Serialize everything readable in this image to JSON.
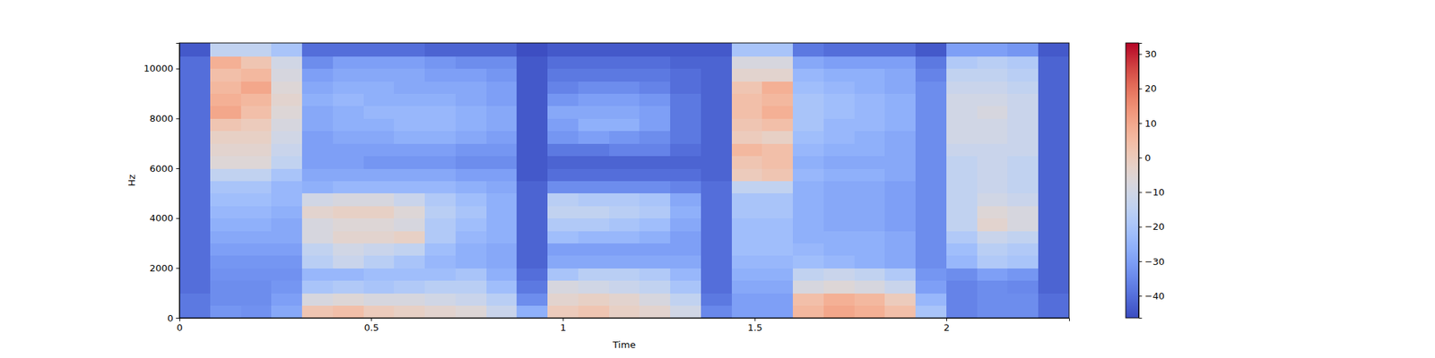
{
  "chart_data": {
    "type": "heatmap",
    "xlabel": "Time",
    "ylabel": "Hz",
    "xlim": [
      0,
      2.32
    ],
    "xticks": [
      0,
      0.5,
      1,
      1.5,
      2
    ],
    "ylim": [
      0,
      11025
    ],
    "yticks": [
      0,
      2000,
      4000,
      6000,
      8000,
      10000
    ],
    "x_edges": [
      0,
      0.08,
      0.16,
      0.24,
      0.32,
      0.4,
      0.48,
      0.56,
      0.64,
      0.72,
      0.8,
      0.88,
      0.96,
      1.04,
      1.12,
      1.2,
      1.28,
      1.36,
      1.44,
      1.52,
      1.6,
      1.68,
      1.76,
      1.84,
      1.92,
      2.0,
      2.08,
      2.16,
      2.24,
      2.32
    ],
    "y_edges": [
      0,
      500,
      1000,
      1500,
      2000,
      2500,
      3000,
      3500,
      4000,
      4500,
      5000,
      5500,
      6000,
      6500,
      7000,
      7500,
      8000,
      8500,
      9000,
      9500,
      10000,
      10500,
      11025
    ],
    "values": [
      [
        -38,
        -32,
        -33,
        -28,
        2,
        4,
        0,
        -2,
        -4,
        -6,
        -12,
        -26,
        0,
        2,
        -2,
        -4,
        -10,
        -35,
        -30,
        -30,
        6,
        10,
        8,
        4,
        -20,
        -36,
        -34,
        -34,
        -40
      ],
      [
        -38,
        -34,
        -34,
        -30,
        -8,
        -6,
        -8,
        -8,
        -10,
        -12,
        -16,
        -34,
        -4,
        -2,
        -4,
        -8,
        -14,
        -38,
        -30,
        -30,
        4,
        8,
        6,
        0,
        -24,
        -36,
        -34,
        -34,
        -40
      ],
      [
        -40,
        -34,
        -34,
        -32,
        -20,
        -18,
        -20,
        -18,
        -16,
        -16,
        -22,
        -38,
        -8,
        -10,
        -12,
        -14,
        -20,
        -40,
        -28,
        -28,
        -8,
        -6,
        -8,
        -12,
        -30,
        -36,
        -34,
        -35,
        -42
      ],
      [
        -40,
        -33,
        -33,
        -33,
        -24,
        -24,
        -22,
        -22,
        -22,
        -20,
        -26,
        -40,
        -20,
        -16,
        -16,
        -18,
        -24,
        -40,
        -26,
        -26,
        -14,
        -12,
        -14,
        -18,
        -32,
        -34,
        -30,
        -32,
        -42
      ],
      [
        -40,
        -32,
        -32,
        -32,
        -16,
        -12,
        -16,
        -20,
        -24,
        -26,
        -28,
        -42,
        -28,
        -28,
        -28,
        -28,
        -28,
        -40,
        -24,
        -24,
        -22,
        -24,
        -26,
        -28,
        -34,
        -24,
        -18,
        -20,
        -42
      ],
      [
        -40,
        -30,
        -30,
        -30,
        -14,
        -10,
        -12,
        -14,
        -22,
        -26,
        -28,
        -42,
        -30,
        -30,
        -30,
        -30,
        -30,
        -40,
        -22,
        -22,
        -24,
        -26,
        -26,
        -28,
        -34,
        -22,
        -16,
        -18,
        -42
      ],
      [
        -40,
        -28,
        -28,
        -28,
        -8,
        -4,
        -4,
        -2,
        -18,
        -24,
        -26,
        -42,
        -22,
        -24,
        -24,
        -26,
        -30,
        -40,
        -22,
        -22,
        -26,
        -26,
        -26,
        -28,
        -34,
        -18,
        -12,
        -14,
        -42
      ],
      [
        -40,
        -26,
        -26,
        -28,
        -8,
        -6,
        -6,
        -8,
        -18,
        -22,
        -26,
        -42,
        -18,
        -18,
        -20,
        -22,
        -28,
        -40,
        -22,
        -22,
        -26,
        -28,
        -28,
        -30,
        -34,
        -14,
        -4,
        -8,
        -42
      ],
      [
        -40,
        -24,
        -24,
        -26,
        -4,
        -2,
        -2,
        -6,
        -16,
        -20,
        -26,
        -42,
        -14,
        -14,
        -16,
        -18,
        -26,
        -40,
        -20,
        -20,
        -26,
        -28,
        -28,
        -30,
        -34,
        -14,
        -6,
        -8,
        -42
      ],
      [
        -40,
        -22,
        -22,
        -24,
        -10,
        -8,
        -8,
        -12,
        -18,
        -22,
        -26,
        -42,
        -16,
        -18,
        -18,
        -20,
        -28,
        -40,
        -20,
        -20,
        -26,
        -28,
        -28,
        -30,
        -34,
        -14,
        -10,
        -12,
        -42
      ],
      [
        -40,
        -20,
        -20,
        -24,
        -26,
        -24,
        -24,
        -24,
        -24,
        -26,
        -28,
        -42,
        -34,
        -34,
        -34,
        -34,
        -36,
        -40,
        -14,
        -14,
        -26,
        -28,
        -28,
        -30,
        -34,
        -14,
        -12,
        -14,
        -42
      ],
      [
        -40,
        -14,
        -14,
        -20,
        -28,
        -28,
        -28,
        -28,
        -28,
        -30,
        -30,
        -44,
        -40,
        -40,
        -40,
        -40,
        -40,
        -42,
        0,
        2,
        -24,
        -26,
        -26,
        -28,
        -34,
        -14,
        -12,
        -14,
        -42
      ],
      [
        -40,
        -6,
        -6,
        -14,
        -30,
        -30,
        -32,
        -32,
        -32,
        -34,
        -34,
        -44,
        -42,
        -42,
        -42,
        -42,
        -42,
        -42,
        2,
        4,
        -26,
        -28,
        -28,
        -28,
        -34,
        -14,
        -12,
        -14,
        -42
      ],
      [
        -40,
        -4,
        -4,
        -12,
        -30,
        -30,
        -30,
        -30,
        -30,
        -32,
        -32,
        -44,
        -38,
        -38,
        -36,
        -36,
        -40,
        -42,
        6,
        4,
        -24,
        -26,
        -26,
        -28,
        -34,
        -12,
        -12,
        -12,
        -42
      ],
      [
        -40,
        -2,
        -2,
        -10,
        -30,
        -28,
        -28,
        -26,
        -26,
        -28,
        -30,
        -44,
        -32,
        -30,
        -32,
        -34,
        -38,
        -42,
        0,
        -2,
        -22,
        -24,
        -26,
        -28,
        -34,
        -10,
        -10,
        -12,
        -42
      ],
      [
        -40,
        2,
        0,
        -8,
        -28,
        -26,
        -26,
        -24,
        -24,
        -26,
        -28,
        -44,
        -30,
        -26,
        -26,
        -30,
        -38,
        -42,
        2,
        4,
        -20,
        -24,
        -24,
        -26,
        -34,
        -10,
        -10,
        -12,
        -42
      ],
      [
        -40,
        10,
        4,
        -6,
        -28,
        -26,
        -24,
        -24,
        -24,
        -26,
        -28,
        -44,
        -28,
        -28,
        -28,
        -30,
        -38,
        -42,
        4,
        8,
        -20,
        -22,
        -24,
        -26,
        -34,
        -10,
        -8,
        -12,
        -42
      ],
      [
        -40,
        8,
        6,
        -4,
        -26,
        -24,
        -26,
        -26,
        -26,
        -28,
        -30,
        -44,
        -32,
        -30,
        -30,
        -32,
        -38,
        -42,
        4,
        6,
        -20,
        -22,
        -24,
        -26,
        -34,
        -10,
        -10,
        -12,
        -42
      ],
      [
        -40,
        6,
        10,
        -6,
        -28,
        -26,
        -26,
        -28,
        -28,
        -28,
        -30,
        -44,
        -36,
        -34,
        -34,
        -36,
        -40,
        -42,
        2,
        8,
        -22,
        -24,
        -26,
        -28,
        -34,
        -12,
        -12,
        -14,
        -42
      ],
      [
        -40,
        4,
        6,
        -8,
        -30,
        -28,
        -28,
        -28,
        -30,
        -30,
        -32,
        -44,
        -38,
        -38,
        -38,
        -38,
        -40,
        -42,
        -4,
        -4,
        -24,
        -26,
        -26,
        -28,
        -36,
        -14,
        -14,
        -16,
        -42
      ],
      [
        -40,
        8,
        2,
        -10,
        -34,
        -30,
        -30,
        -30,
        -32,
        -34,
        -34,
        -44,
        -40,
        -40,
        -40,
        -40,
        -42,
        -42,
        -8,
        -8,
        -28,
        -30,
        -30,
        -30,
        -38,
        -18,
        -16,
        -18,
        -42
      ],
      [
        -44,
        -14,
        -14,
        -20,
        -40,
        -40,
        -40,
        -40,
        -42,
        -42,
        -42,
        -46,
        -44,
        -44,
        -44,
        -44,
        -44,
        -44,
        -20,
        -20,
        -38,
        -40,
        -40,
        -40,
        -44,
        -30,
        -30,
        -32,
        -44
      ]
    ],
    "colorbar_range": [
      -46.4,
      33.2
    ],
    "colorbar_ticks": [
      {
        "value": -40,
        "label": "−40"
      },
      {
        "value": -30,
        "label": "−30"
      },
      {
        "value": -20,
        "label": "−20"
      },
      {
        "value": -10,
        "label": "−10"
      },
      0,
      10,
      20,
      30
    ]
  }
}
